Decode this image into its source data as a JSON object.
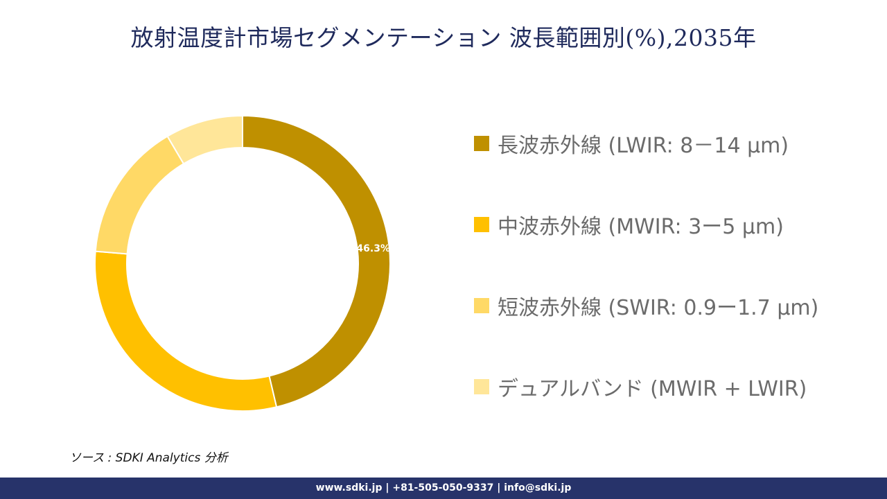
{
  "title": "放射温度計市場セグメンテーション 波長範囲別(%),2035年",
  "chart_data": {
    "type": "pie",
    "variant": "donut",
    "categories": [
      "長波赤外線 (LWIR: 8－14 µm)",
      "中波赤外線 (MWIR: 3ー5 µm)",
      "短波赤外線 (SWIR: 0.9ー1.7 µm)",
      "デュアルバンド (MWIR + LWIR)"
    ],
    "values": [
      46.3,
      30.0,
      15.2,
      8.5
    ],
    "colors": [
      "#bf9000",
      "#ffc000",
      "#ffd966",
      "#ffe699"
    ],
    "data_labels": [
      "46.3%",
      "",
      "",
      ""
    ],
    "legend_position": "right"
  },
  "source": "ソース : SDKI Analytics 分析",
  "footer": "www.sdki.jp | +81-505-050-9337 | info@sdki.jp"
}
